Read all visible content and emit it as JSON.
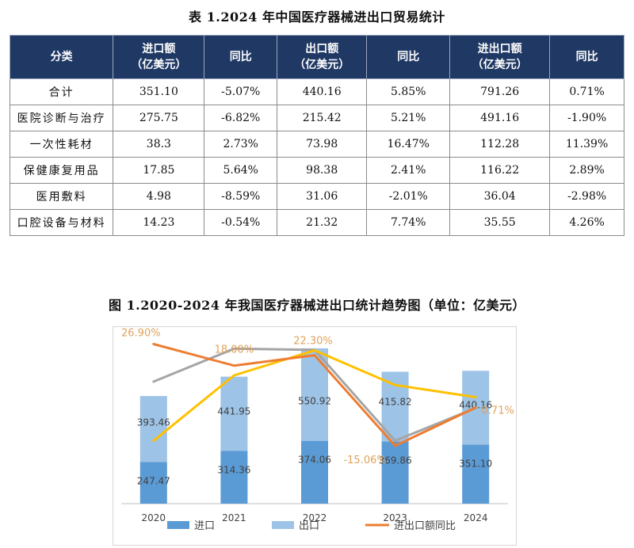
{
  "table": {
    "title": "表 1.2024 年中国医疗器械进出口贸易统计",
    "header_fill": "#1f3864",
    "headers": [
      {
        "l1": "分类",
        "l2": ""
      },
      {
        "l1": "进口额",
        "l2": "（亿美元）"
      },
      {
        "l1": "同比",
        "l2": ""
      },
      {
        "l1": "出口额",
        "l2": "（亿美元）"
      },
      {
        "l1": "同比",
        "l2": ""
      },
      {
        "l1": "进出口额",
        "l2": "（亿美元）"
      },
      {
        "l1": "同比",
        "l2": ""
      }
    ],
    "rows": [
      [
        "合计",
        "351.10",
        "-5.07%",
        "440.16",
        "5.85%",
        "791.26",
        "0.71%"
      ],
      [
        "医院诊断与治疗",
        "275.75",
        "-6.82%",
        "215.42",
        "5.21%",
        "491.16",
        "-1.90%"
      ],
      [
        "一次性耗材",
        "38.3",
        "2.73%",
        "73.98",
        "16.47%",
        "112.28",
        "11.39%"
      ],
      [
        "保健康复用品",
        "17.85",
        "5.64%",
        "98.38",
        "2.41%",
        "116.22",
        "2.89%"
      ],
      [
        "医用敷料",
        "4.98",
        "-8.59%",
        "31.06",
        "-2.01%",
        "36.04",
        "-2.98%"
      ],
      [
        "口腔设备与材料",
        "14.23",
        "-0.54%",
        "21.32",
        "7.74%",
        "35.55",
        "4.26%"
      ]
    ]
  },
  "chart": {
    "title": "图 1.2020-2024 年我国医疗器械进出口统计趋势图（单位：亿美元）"
  },
  "chart_data": {
    "type": "bar",
    "categories": [
      "2020",
      "2021",
      "2022",
      "2023",
      "2024"
    ],
    "stacked": true,
    "series": [
      {
        "name": "进口",
        "values": [
          247.47,
          314.36,
          374.06,
          369.86,
          351.1
        ],
        "color": "#5b9bd5",
        "labels": [
          "247.47",
          "314.36",
          "374.06",
          "369.86",
          "351.10"
        ]
      },
      {
        "name": "出口",
        "values": [
          393.46,
          441.95,
          550.92,
          415.82,
          440.16
        ],
        "color": "#9dc3e6",
        "labels": [
          "393.46",
          "441.95",
          "550.92",
          "415.82",
          "440.16"
        ]
      }
    ],
    "lines": [
      {
        "name": "进出口额同比",
        "values": [
          26.9,
          18.0,
          22.3,
          -15.06,
          0.71
        ],
        "labels": [
          "26.90%",
          "18.00%",
          "22.30%",
          "-15.06%",
          "0.71%"
        ],
        "color": "#ed7d31",
        "legend": true
      },
      {
        "name": "",
        "values": [
          11.4,
          25.0,
          24.5,
          -13.0,
          0.5
        ],
        "color": "#a5a5a5",
        "legend": false
      },
      {
        "name": "",
        "values": [
          -13.0,
          14.0,
          24.3,
          10.0,
          5.0
        ],
        "color": "#ffc000",
        "legend": false
      }
    ],
    "legend": "bottom",
    "grid": false
  }
}
